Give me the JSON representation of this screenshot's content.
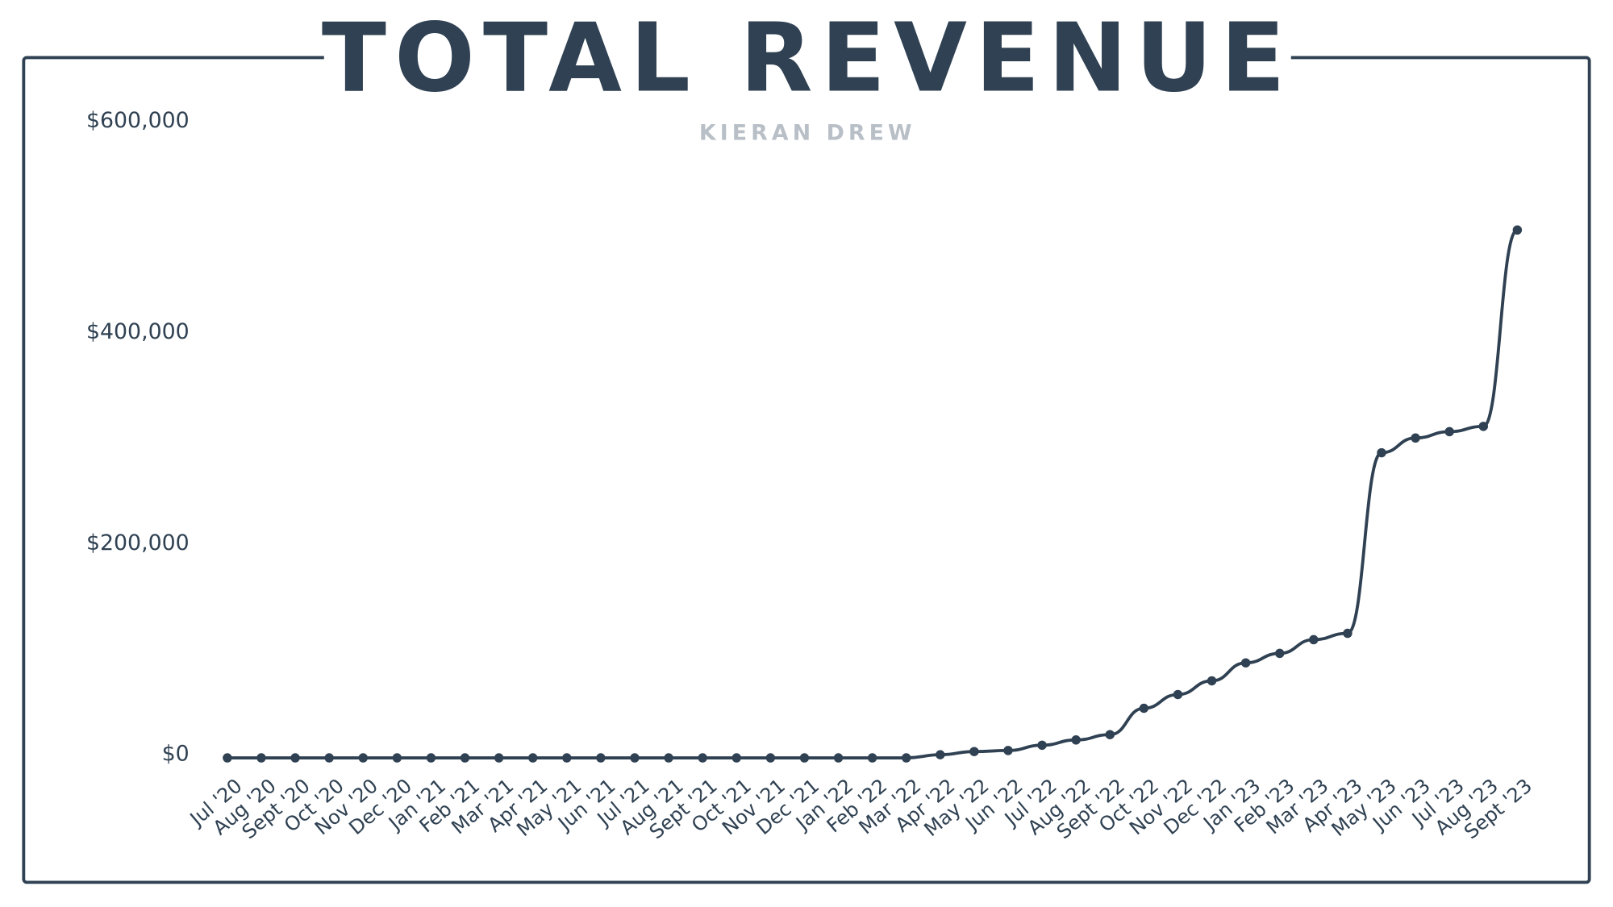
{
  "chart_data": {
    "type": "line",
    "title": "TOTAL REVENUE",
    "subtitle": "KIERAN DREW",
    "categories": [
      "Jul '20",
      "Aug '20",
      "Sept '20",
      "Oct '20",
      "Nov '20",
      "Dec '20",
      "Jan '21",
      "Feb '21",
      "Mar '21",
      "Apr '21",
      "May '21",
      "Jun '21",
      "Jul '21",
      "Aug '21",
      "Sept '21",
      "Oct '21",
      "Nov '21",
      "Dec '21",
      "Jan '22",
      "Feb '22",
      "Mar '22",
      "Apr '22",
      "May '22",
      "Jun '22",
      "Jul '22",
      "Aug '22",
      "Sept '22",
      "Oct '22",
      "Nov '22",
      "Dec '22",
      "Jan '23",
      "Feb '23",
      "Mar '23",
      "Apr '23",
      "May '23",
      "Jun '23",
      "Jul '23",
      "Aug '23",
      "Sept '23"
    ],
    "series": [
      {
        "name": "Total Revenue",
        "color": "#2f4152",
        "values": [
          0,
          0,
          0,
          0,
          0,
          0,
          0,
          0,
          0,
          0,
          0,
          0,
          0,
          0,
          0,
          0,
          0,
          0,
          0,
          0,
          0,
          3000,
          6000,
          7000,
          12000,
          17000,
          22000,
          47000,
          60000,
          73000,
          90000,
          99000,
          112000,
          118000,
          289000,
          303000,
          309000,
          314000,
          500000
        ]
      }
    ],
    "ylim": [
      0,
      600000
    ],
    "yticks": [
      {
        "value": 0,
        "label": "$0"
      },
      {
        "value": 200000,
        "label": "$200,000"
      },
      {
        "value": 400000,
        "label": "$400,000"
      },
      {
        "value": 600000,
        "label": "$600,000"
      }
    ],
    "grid": false
  }
}
